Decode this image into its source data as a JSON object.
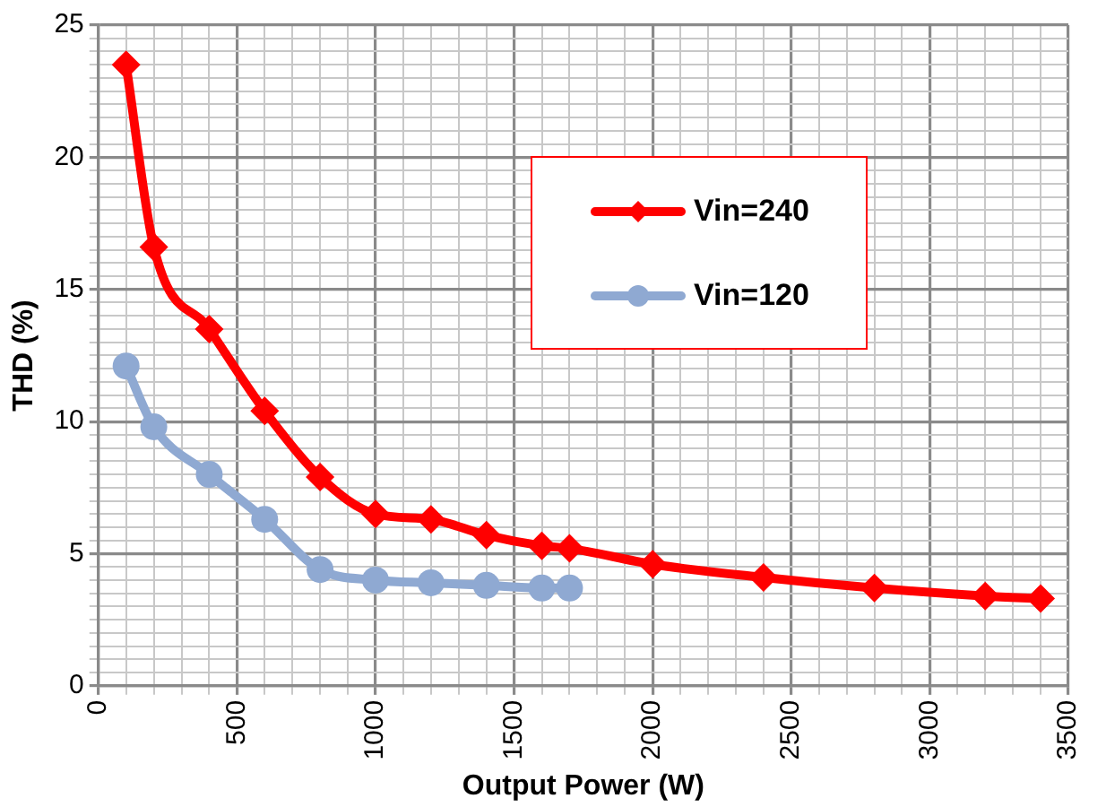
{
  "chart_data": {
    "type": "line",
    "xlabel": "Output Power (W)",
    "ylabel": "THD (%)",
    "xlim": [
      0,
      3500
    ],
    "xticks": [
      0,
      {
        "value": 100,
        "label": null
      },
      {
        "value": 200,
        "label": null
      },
      {
        "value": 300,
        "label": null
      },
      {
        "value": 400,
        "label": null
      },
      500,
      {
        "value": 600,
        "label": null
      },
      {
        "value": 700,
        "label": null
      },
      {
        "value": 800,
        "label": null
      },
      {
        "value": 900,
        "label": null
      },
      1000,
      {
        "value": 1100,
        "label": null
      },
      {
        "value": 1200,
        "label": null
      },
      {
        "value": 1300,
        "label": null
      },
      {
        "value": 1400,
        "label": null
      },
      1500,
      {
        "value": 1600,
        "label": null
      },
      {
        "value": 1700,
        "label": null
      },
      {
        "value": 1800,
        "label": null
      },
      {
        "value": 1900,
        "label": null
      },
      2000,
      {
        "value": 2100,
        "label": null
      },
      {
        "value": 2200,
        "label": null
      },
      {
        "value": 2300,
        "label": null
      },
      {
        "value": 2400,
        "label": null
      },
      2500,
      {
        "value": 2600,
        "label": null
      },
      {
        "value": 2700,
        "label": null
      },
      {
        "value": 2800,
        "label": null
      },
      {
        "value": 2900,
        "label": null
      },
      3000,
      {
        "value": 3100,
        "label": null
      },
      {
        "value": 3200,
        "label": null
      },
      {
        "value": 3300,
        "label": null
      },
      {
        "value": 3400,
        "label": null
      },
      3500
    ],
    "ylim": [
      0,
      25
    ],
    "yticks": [
      0,
      {
        "value": 0.5,
        "label": null
      },
      {
        "value": 1,
        "label": null
      },
      {
        "value": 1.5,
        "label": null
      },
      {
        "value": 2,
        "label": null
      },
      {
        "value": 2.5,
        "label": null
      },
      {
        "value": 3,
        "label": null
      },
      {
        "value": 3.5,
        "label": null
      },
      {
        "value": 4,
        "label": null
      },
      {
        "value": 4.5,
        "label": null
      },
      5,
      {
        "value": 5.5,
        "label": null
      },
      {
        "value": 6,
        "label": null
      },
      {
        "value": 6.5,
        "label": null
      },
      {
        "value": 7,
        "label": null
      },
      {
        "value": 7.5,
        "label": null
      },
      {
        "value": 8,
        "label": null
      },
      {
        "value": 8.5,
        "label": null
      },
      {
        "value": 9,
        "label": null
      },
      {
        "value": 9.5,
        "label": null
      },
      10,
      {
        "value": 10.5,
        "label": null
      },
      {
        "value": 11,
        "label": null
      },
      {
        "value": 11.5,
        "label": null
      },
      {
        "value": 12,
        "label": null
      },
      {
        "value": 12.5,
        "label": null
      },
      {
        "value": 13,
        "label": null
      },
      {
        "value": 13.5,
        "label": null
      },
      {
        "value": 14,
        "label": null
      },
      {
        "value": 14.5,
        "label": null
      },
      15,
      {
        "value": 15.5,
        "label": null
      },
      {
        "value": 16,
        "label": null
      },
      {
        "value": 16.5,
        "label": null
      },
      {
        "value": 17,
        "label": null
      },
      {
        "value": 17.5,
        "label": null
      },
      {
        "value": 18,
        "label": null
      },
      {
        "value": 18.5,
        "label": null
      },
      {
        "value": 19,
        "label": null
      },
      {
        "value": 19.5,
        "label": null
      },
      20,
      {
        "value": 20.5,
        "label": null
      },
      {
        "value": 21,
        "label": null
      },
      {
        "value": 21.5,
        "label": null
      },
      {
        "value": 22,
        "label": null
      },
      {
        "value": 22.5,
        "label": null
      },
      {
        "value": 23,
        "label": null
      },
      {
        "value": 23.5,
        "label": null
      },
      {
        "value": 24,
        "label": null
      },
      {
        "value": 24.5,
        "label": null
      },
      25
    ],
    "grid": true,
    "legend": "top right",
    "line_style": "solid",
    "series": [
      {
        "name": "Vin=240",
        "color": "#ff0000",
        "marker": "diamond",
        "x": [
          100,
          200,
          400,
          600,
          800,
          1000,
          1200,
          1400,
          1600,
          1700,
          2000,
          2400,
          2800,
          3200,
          3400
        ],
        "values": [
          23.5,
          16.6,
          13.5,
          10.4,
          7.9,
          6.5,
          6.3,
          5.7,
          5.3,
          5.2,
          4.6,
          4.1,
          3.7,
          3.4,
          3.3
        ]
      },
      {
        "name": "Vin=120",
        "color": "#8fa9d2",
        "marker": "circle",
        "x": [
          100,
          200,
          400,
          600,
          800,
          1000,
          1200,
          1400,
          1600,
          1700
        ],
        "values": [
          12.1,
          9.8,
          8.0,
          6.3,
          4.4,
          4.0,
          3.9,
          3.8,
          3.7,
          3.7
        ]
      }
    ]
  }
}
